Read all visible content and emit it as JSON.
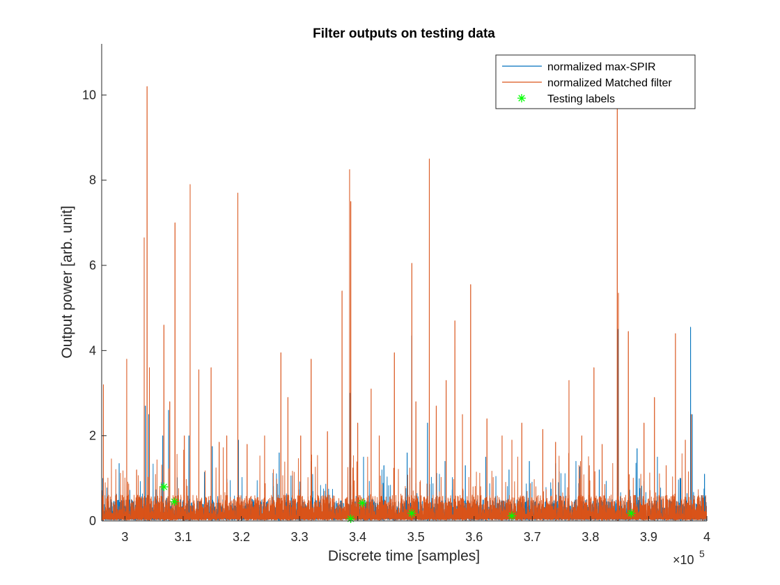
{
  "chart_data": {
    "type": "line",
    "title": "Filter outputs on testing data",
    "xlabel": "Discrete time [samples]",
    "ylabel": "Output power [arb. unit]",
    "x_exponent_label": "×10",
    "x_exponent_power": "5",
    "xlim": [
      296000,
      400000
    ],
    "ylim": [
      0,
      11.2
    ],
    "xticks": [
      300000,
      310000,
      320000,
      330000,
      340000,
      350000,
      360000,
      370000,
      380000,
      390000,
      400000
    ],
    "xtick_labels": [
      "3",
      "3.1",
      "3.2",
      "3.3",
      "3.4",
      "3.5",
      "3.6",
      "3.7",
      "3.8",
      "3.9",
      "4"
    ],
    "yticks": [
      0,
      2,
      4,
      6,
      8,
      10
    ],
    "ytick_labels": [
      "0",
      "2",
      "4",
      "6",
      "8",
      "10"
    ],
    "grid": false,
    "legend_position": "top-right",
    "series": [
      {
        "name": "normalized max-SPIR",
        "color": "#0072BD",
        "marker": "none",
        "peaks": [
          {
            "x": 296200,
            "y": 1.0
          },
          {
            "x": 299000,
            "y": 1.35
          },
          {
            "x": 303500,
            "y": 2.7
          },
          {
            "x": 304100,
            "y": 2.5
          },
          {
            "x": 306500,
            "y": 2.0
          },
          {
            "x": 307500,
            "y": 2.6
          },
          {
            "x": 311000,
            "y": 2.0
          },
          {
            "x": 315000,
            "y": 1.75
          },
          {
            "x": 319500,
            "y": 1.9
          },
          {
            "x": 326500,
            "y": 1.6
          },
          {
            "x": 332000,
            "y": 1.4
          },
          {
            "x": 338700,
            "y": 3.0
          },
          {
            "x": 341000,
            "y": 1.5
          },
          {
            "x": 344500,
            "y": 1.3
          },
          {
            "x": 348500,
            "y": 1.6
          },
          {
            "x": 349300,
            "y": 4.35
          },
          {
            "x": 352000,
            "y": 2.3
          },
          {
            "x": 355000,
            "y": 1.4
          },
          {
            "x": 358500,
            "y": 1.3
          },
          {
            "x": 362000,
            "y": 1.5
          },
          {
            "x": 366000,
            "y": 1.2
          },
          {
            "x": 369500,
            "y": 1.4
          },
          {
            "x": 374000,
            "y": 1.35
          },
          {
            "x": 377500,
            "y": 1.4
          },
          {
            "x": 381500,
            "y": 1.2
          },
          {
            "x": 384700,
            "y": 4.5
          },
          {
            "x": 388000,
            "y": 1.7
          },
          {
            "x": 391500,
            "y": 1.5
          },
          {
            "x": 395500,
            "y": 1.0
          },
          {
            "x": 397200,
            "y": 4.55
          },
          {
            "x": 397500,
            "y": 2.5
          },
          {
            "x": 399600,
            "y": 1.1
          }
        ]
      },
      {
        "name": "normalized Matched filter",
        "color": "#D95319",
        "marker": "none",
        "peaks": [
          {
            "x": 296300,
            "y": 3.2
          },
          {
            "x": 300300,
            "y": 3.8
          },
          {
            "x": 302000,
            "y": 1.2
          },
          {
            "x": 303300,
            "y": 6.65
          },
          {
            "x": 303800,
            "y": 10.2
          },
          {
            "x": 304200,
            "y": 3.6
          },
          {
            "x": 306700,
            "y": 4.6
          },
          {
            "x": 307700,
            "y": 2.8
          },
          {
            "x": 308600,
            "y": 7.0
          },
          {
            "x": 310200,
            "y": 2.0
          },
          {
            "x": 311200,
            "y": 7.9
          },
          {
            "x": 312700,
            "y": 3.55
          },
          {
            "x": 314800,
            "y": 3.6
          },
          {
            "x": 316200,
            "y": 1.85
          },
          {
            "x": 317500,
            "y": 2.0
          },
          {
            "x": 319400,
            "y": 7.7
          },
          {
            "x": 321000,
            "y": 1.8
          },
          {
            "x": 324000,
            "y": 2.0
          },
          {
            "x": 326800,
            "y": 3.95
          },
          {
            "x": 328000,
            "y": 2.9
          },
          {
            "x": 330200,
            "y": 2.0
          },
          {
            "x": 332000,
            "y": 3.8
          },
          {
            "x": 334800,
            "y": 2.1
          },
          {
            "x": 337300,
            "y": 5.4
          },
          {
            "x": 338600,
            "y": 8.25
          },
          {
            "x": 338800,
            "y": 7.5
          },
          {
            "x": 340000,
            "y": 2.3
          },
          {
            "x": 342300,
            "y": 3.1
          },
          {
            "x": 343700,
            "y": 2.0
          },
          {
            "x": 346300,
            "y": 3.95
          },
          {
            "x": 349300,
            "y": 6.05
          },
          {
            "x": 350000,
            "y": 2.8
          },
          {
            "x": 352300,
            "y": 8.5
          },
          {
            "x": 353500,
            "y": 2.7
          },
          {
            "x": 355200,
            "y": 3.3
          },
          {
            "x": 356700,
            "y": 4.7
          },
          {
            "x": 358000,
            "y": 2.5
          },
          {
            "x": 359400,
            "y": 5.55
          },
          {
            "x": 362200,
            "y": 2.4
          },
          {
            "x": 364800,
            "y": 2.0
          },
          {
            "x": 366500,
            "y": 1.9
          },
          {
            "x": 368200,
            "y": 2.3
          },
          {
            "x": 371800,
            "y": 2.15
          },
          {
            "x": 374000,
            "y": 1.85
          },
          {
            "x": 376300,
            "y": 3.3
          },
          {
            "x": 378500,
            "y": 2.0
          },
          {
            "x": 380600,
            "y": 3.6
          },
          {
            "x": 382000,
            "y": 1.8
          },
          {
            "x": 384600,
            "y": 10.2
          },
          {
            "x": 384800,
            "y": 5.35
          },
          {
            "x": 386500,
            "y": 4.45
          },
          {
            "x": 389200,
            "y": 2.3
          },
          {
            "x": 391000,
            "y": 2.9
          },
          {
            "x": 393000,
            "y": 1.3
          },
          {
            "x": 394600,
            "y": 4.4
          },
          {
            "x": 396300,
            "y": 1.9
          },
          {
            "x": 397300,
            "y": 2.5
          },
          {
            "x": 399300,
            "y": 0.6
          }
        ]
      },
      {
        "name": "Testing labels",
        "color": "#00FF00",
        "marker": "asterisk",
        "line": "none",
        "points": [
          {
            "x": 306700,
            "y": 0.8
          },
          {
            "x": 308500,
            "y": 0.45
          },
          {
            "x": 338800,
            "y": 0.05
          },
          {
            "x": 340800,
            "y": 0.42
          },
          {
            "x": 349300,
            "y": 0.18
          },
          {
            "x": 366500,
            "y": 0.12
          },
          {
            "x": 387000,
            "y": 0.18
          }
        ]
      }
    ]
  }
}
